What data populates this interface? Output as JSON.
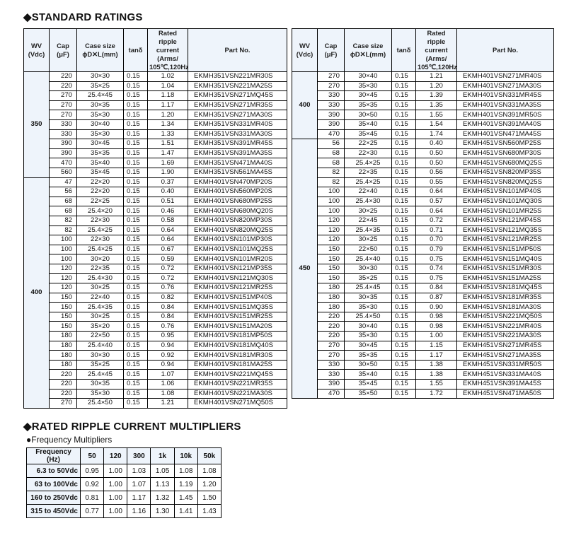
{
  "title_standard": "◆STANDARD RATINGS",
  "columns": [
    "WV\n(Vdc)",
    "Cap\n(μF)",
    "Case size\nϕD✕L(mm)",
    "tanδ",
    "Rated ripple\ncurrent\n(Arms/\n105℃,120Hz)",
    "Part No."
  ],
  "left_table": [
    {
      "wv": "350",
      "rows": [
        [
          "220",
          "30×30",
          "0.15",
          "1.02",
          "EKMH351VSN221MR30S"
        ],
        [
          "220",
          "35×25",
          "0.15",
          "1.04",
          "EKMH351VSN221MA25S"
        ],
        [
          "270",
          "25.4×45",
          "0.15",
          "1.18",
          "EKMH351VSN271MQ45S"
        ],
        [
          "270",
          "30×35",
          "0.15",
          "1.17",
          "EKMH351VSN271MR35S"
        ],
        [
          "270",
          "35×30",
          "0.15",
          "1.20",
          "EKMH351VSN271MA30S"
        ],
        [
          "330",
          "30×40",
          "0.15",
          "1.34",
          "EKMH351VSN331MR40S"
        ],
        [
          "330",
          "35×30",
          "0.15",
          "1.33",
          "EKMH351VSN331MA30S"
        ],
        [
          "390",
          "30×45",
          "0.15",
          "1.51",
          "EKMH351VSN391MR45S"
        ],
        [
          "390",
          "35×35",
          "0.15",
          "1.47",
          "EKMH351VSN391MA35S"
        ],
        [
          "470",
          "35×40",
          "0.15",
          "1.69",
          "EKMH351VSN471MA40S"
        ],
        [
          "560",
          "35×45",
          "0.15",
          "1.90",
          "EKMH351VSN561MA45S"
        ]
      ]
    },
    {
      "wv": "400",
      "rows": [
        [
          "47",
          "22×20",
          "0.15",
          "0.37",
          "EKMH401VSN470MP20S"
        ],
        [
          "56",
          "22×20",
          "0.15",
          "0.40",
          "EKMH401VSN560MP20S"
        ],
        [
          "68",
          "22×25",
          "0.15",
          "0.51",
          "EKMH401VSN680MP25S"
        ],
        [
          "68",
          "25.4×20",
          "0.15",
          "0.46",
          "EKMH401VSN680MQ20S"
        ],
        [
          "82",
          "22×30",
          "0.15",
          "0.58",
          "EKMH401VSN820MP30S"
        ],
        [
          "82",
          "25.4×25",
          "0.15",
          "0.64",
          "EKMH401VSN820MQ25S"
        ],
        [
          "100",
          "22×30",
          "0.15",
          "0.64",
          "EKMH401VSN101MP30S"
        ],
        [
          "100",
          "25.4×25",
          "0.15",
          "0.67",
          "EKMH401VSN101MQ25S"
        ],
        [
          "100",
          "30×20",
          "0.15",
          "0.59",
          "EKMH401VSN101MR20S"
        ],
        [
          "120",
          "22×35",
          "0.15",
          "0.72",
          "EKMH401VSN121MP35S"
        ],
        [
          "120",
          "25.4×30",
          "0.15",
          "0.72",
          "EKMH401VSN121MQ30S"
        ],
        [
          "120",
          "30×25",
          "0.15",
          "0.76",
          "EKMH401VSN121MR25S"
        ],
        [
          "150",
          "22×40",
          "0.15",
          "0.82",
          "EKMH401VSN151MP40S"
        ],
        [
          "150",
          "25.4×35",
          "0.15",
          "0.84",
          "EKMH401VSN151MQ35S"
        ],
        [
          "150",
          "30×25",
          "0.15",
          "0.84",
          "EKMH401VSN151MR25S"
        ],
        [
          "150",
          "35×20",
          "0.15",
          "0.76",
          "EKMH401VSN151MA20S"
        ],
        [
          "180",
          "22×50",
          "0.15",
          "0.95",
          "EKMH401VSN181MP50S"
        ],
        [
          "180",
          "25.4×40",
          "0.15",
          "0.94",
          "EKMH401VSN181MQ40S"
        ],
        [
          "180",
          "30×30",
          "0.15",
          "0.92",
          "EKMH401VSN181MR30S"
        ],
        [
          "180",
          "35×25",
          "0.15",
          "0.94",
          "EKMH401VSN181MA25S"
        ],
        [
          "220",
          "25.4×45",
          "0.15",
          "1.07",
          "EKMH401VSN221MQ45S"
        ],
        [
          "220",
          "30×35",
          "0.15",
          "1.06",
          "EKMH401VSN221MR35S"
        ],
        [
          "220",
          "35×30",
          "0.15",
          "1.08",
          "EKMH401VSN221MA30S"
        ],
        [
          "270",
          "25.4×50",
          "0.15",
          "1.21",
          "EKMH401VSN271MQ50S"
        ]
      ]
    }
  ],
  "right_table": [
    {
      "wv": "400",
      "rows": [
        [
          "270",
          "30×40",
          "0.15",
          "1.21",
          "EKMH401VSN271MR40S"
        ],
        [
          "270",
          "35×30",
          "0.15",
          "1.20",
          "EKMH401VSN271MA30S"
        ],
        [
          "330",
          "30×45",
          "0.15",
          "1.39",
          "EKMH401VSN331MR45S"
        ],
        [
          "330",
          "35×35",
          "0.15",
          "1.35",
          "EKMH401VSN331MA35S"
        ],
        [
          "390",
          "30×50",
          "0.15",
          "1.55",
          "EKMH401VSN391MR50S"
        ],
        [
          "390",
          "35×40",
          "0.15",
          "1.54",
          "EKMH401VSN391MA40S"
        ],
        [
          "470",
          "35×45",
          "0.15",
          "1.74",
          "EKMH401VSN471MA45S"
        ]
      ]
    },
    {
      "wv": "450",
      "rows": [
        [
          "56",
          "22×25",
          "0.15",
          "0.40",
          "EKMH451VSN560MP25S"
        ],
        [
          "68",
          "22×30",
          "0.15",
          "0.50",
          "EKMH451VSN680MP30S"
        ],
        [
          "68",
          "25.4×25",
          "0.15",
          "0.50",
          "EKMH451VSN680MQ25S"
        ],
        [
          "82",
          "22×35",
          "0.15",
          "0.56",
          "EKMH451VSN820MP35S"
        ],
        [
          "82",
          "25.4×25",
          "0.15",
          "0.55",
          "EKMH451VSN820MQ25S"
        ],
        [
          "100",
          "22×40",
          "0.15",
          "0.64",
          "EKMH451VSN101MP40S"
        ],
        [
          "100",
          "25.4×30",
          "0.15",
          "0.57",
          "EKMH451VSN101MQ30S"
        ],
        [
          "100",
          "30×25",
          "0.15",
          "0.64",
          "EKMH451VSN101MR25S"
        ],
        [
          "120",
          "22×45",
          "0.15",
          "0.72",
          "EKMH451VSN121MP45S"
        ],
        [
          "120",
          "25.4×35",
          "0.15",
          "0.71",
          "EKMH451VSN121MQ35S"
        ],
        [
          "120",
          "30×25",
          "0.15",
          "0.70",
          "EKMH451VSN121MR25S"
        ],
        [
          "150",
          "22×50",
          "0.15",
          "0.79",
          "EKMH451VSN151MP50S"
        ],
        [
          "150",
          "25.4×40",
          "0.15",
          "0.75",
          "EKMH451VSN151MQ40S"
        ],
        [
          "150",
          "30×30",
          "0.15",
          "0.74",
          "EKMH451VSN151MR30S"
        ],
        [
          "150",
          "35×25",
          "0.15",
          "0.75",
          "EKMH451VSN151MA25S"
        ],
        [
          "180",
          "25.4×45",
          "0.15",
          "0.84",
          "EKMH451VSN181MQ45S"
        ],
        [
          "180",
          "30×35",
          "0.15",
          "0.87",
          "EKMH451VSN181MR35S"
        ],
        [
          "180",
          "35×30",
          "0.15",
          "0.90",
          "EKMH451VSN181MA30S"
        ],
        [
          "220",
          "25.4×50",
          "0.15",
          "0.98",
          "EKMH451VSN221MQ50S"
        ],
        [
          "220",
          "30×40",
          "0.15",
          "0.98",
          "EKMH451VSN221MR40S"
        ],
        [
          "220",
          "35×30",
          "0.15",
          "1.00",
          "EKMH451VSN221MA30S"
        ],
        [
          "270",
          "30×45",
          "0.15",
          "1.15",
          "EKMH451VSN271MR45S"
        ],
        [
          "270",
          "35×35",
          "0.15",
          "1.17",
          "EKMH451VSN271MA35S"
        ],
        [
          "330",
          "30×50",
          "0.15",
          "1.38",
          "EKMH451VSN331MR50S"
        ],
        [
          "330",
          "35×40",
          "0.15",
          "1.38",
          "EKMH451VSN331MA40S"
        ],
        [
          "390",
          "35×45",
          "0.15",
          "1.55",
          "EKMH451VSN391MA45S"
        ],
        [
          "470",
          "35×50",
          "0.15",
          "1.72",
          "EKMH451VSN471MA50S"
        ]
      ]
    }
  ],
  "title_multipliers": "◆RATED RIPPLE CURRENT MULTIPLIERS",
  "subtitle_frequency": "●Frequency Multipliers",
  "multipliers": {
    "header": [
      "Frequency (Hz)",
      "50",
      "120",
      "300",
      "1k",
      "10k",
      "50k"
    ],
    "rows": [
      [
        "6.3 to 50Vdc",
        "0.95",
        "1.00",
        "1.03",
        "1.05",
        "1.08",
        "1.08"
      ],
      [
        "63 to 100Vdc",
        "0.92",
        "1.00",
        "1.07",
        "1.13",
        "1.19",
        "1.20"
      ],
      [
        "160 to 250Vdc",
        "0.81",
        "1.00",
        "1.17",
        "1.32",
        "1.45",
        "1.50"
      ],
      [
        "315 to 450Vdc",
        "0.77",
        "1.00",
        "1.16",
        "1.30",
        "1.41",
        "1.43"
      ]
    ]
  },
  "colors": {
    "header_bg": "#eef4fb",
    "border": "#000000"
  }
}
